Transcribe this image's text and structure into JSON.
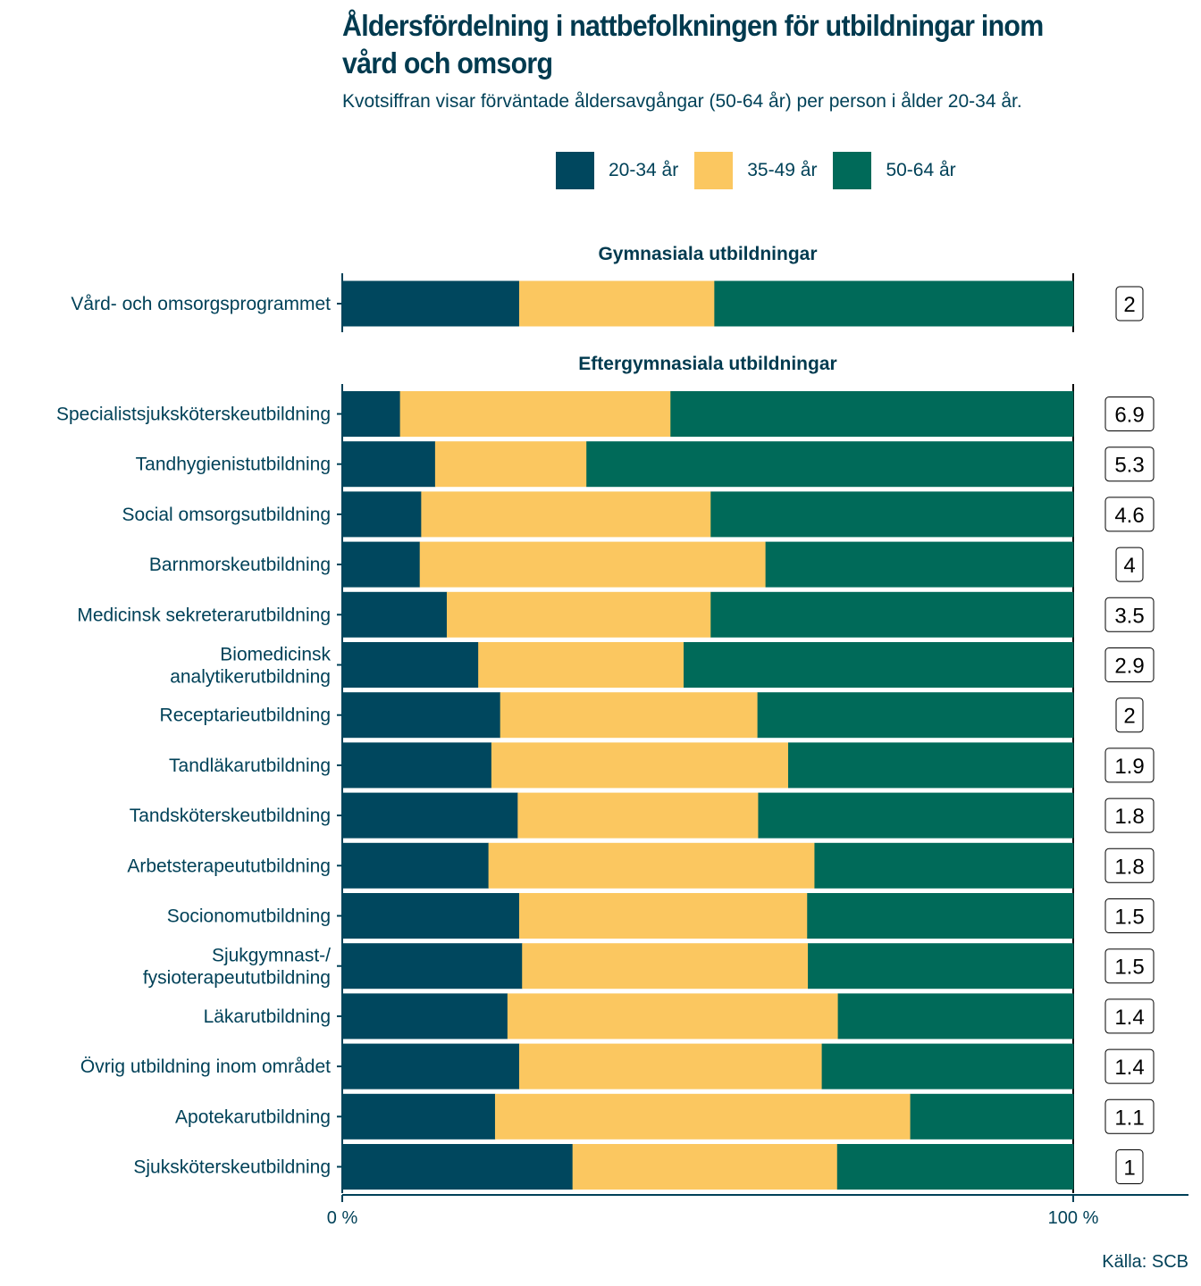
{
  "title": "Åldersfördelning i nattbefolkningen för utbildningar inom vård och omsorg",
  "subtitle": "Kvotsiffran visar förväntade åldersavgångar (50-64 år) per person i ålder 20-34 år.",
  "source": "Källa: SCB",
  "legend": [
    {
      "label": "20-34 år",
      "color": "#00475e"
    },
    {
      "label": "35-49 år",
      "color": "#fbc760"
    },
    {
      "label": "50-64 år",
      "color": "#006a59"
    }
  ],
  "chart_data": {
    "type": "bar",
    "orientation": "horizontal",
    "stacked": "percent",
    "xlim": [
      0,
      100
    ],
    "x_ticks": [
      "0 %",
      "100 %"
    ],
    "series_names": [
      "20-34 år",
      "35-49 år",
      "50-64 år"
    ],
    "colors": [
      "#00475e",
      "#fbc760",
      "#006a59"
    ],
    "legend_position": "top",
    "facets": [
      {
        "title": "Gymnasiala utbildningar",
        "rows": [
          {
            "label": "Vård- och omsorgsprogrammet",
            "values": [
              24.2,
              26.7,
              49.1
            ],
            "ratio": "2"
          }
        ]
      },
      {
        "title": "Eftergymnasiala utbildningar",
        "rows": [
          {
            "label": "Specialistsjuksköterskeutbildning",
            "values": [
              7.9,
              37.0,
              55.1
            ],
            "ratio": "6.9"
          },
          {
            "label": "Tandhygienistutbildning",
            "values": [
              12.7,
              20.7,
              66.6
            ],
            "ratio": "5.3"
          },
          {
            "label": "Social omsorgsutbildning",
            "values": [
              10.8,
              39.6,
              49.6
            ],
            "ratio": "4.6"
          },
          {
            "label": "Barnmorskeutbildning",
            "values": [
              10.6,
              47.3,
              42.1
            ],
            "ratio": "4"
          },
          {
            "label": "Medicinsk sekreterarutbildning",
            "values": [
              14.3,
              36.1,
              49.6
            ],
            "ratio": "3.5"
          },
          {
            "label": "Biomedicinsk\nanalytikerutbildning",
            "values": [
              18.6,
              28.1,
              53.3
            ],
            "ratio": "2.9"
          },
          {
            "label": "Receptarieutbildning",
            "values": [
              21.6,
              35.2,
              43.2
            ],
            "ratio": "2"
          },
          {
            "label": "Tandläkarutbildning",
            "values": [
              20.4,
              40.6,
              39.0
            ],
            "ratio": "1.9"
          },
          {
            "label": "Tandsköterskeutbildning",
            "values": [
              24.0,
              32.9,
              43.1
            ],
            "ratio": "1.8"
          },
          {
            "label": "Arbetsterapeututbildning",
            "values": [
              20.0,
              44.6,
              35.4
            ],
            "ratio": "1.8"
          },
          {
            "label": "Socionomutbildning",
            "values": [
              24.2,
              39.4,
              36.4
            ],
            "ratio": "1.5"
          },
          {
            "label": "Sjukgymnast-/\nfysioterapeututbildning",
            "values": [
              24.6,
              39.1,
              36.3
            ],
            "ratio": "1.5"
          },
          {
            "label": "Läkarutbildning",
            "values": [
              22.6,
              45.2,
              32.2
            ],
            "ratio": "1.4"
          },
          {
            "label": "Övrig utbildning inom området",
            "values": [
              24.2,
              41.4,
              34.4
            ],
            "ratio": "1.4"
          },
          {
            "label": "Apotekarutbildning",
            "values": [
              20.9,
              56.8,
              22.3
            ],
            "ratio": "1.1"
          },
          {
            "label": "Sjuksköterskeutbildning",
            "values": [
              31.5,
              36.2,
              32.3
            ],
            "ratio": "1"
          }
        ]
      }
    ]
  }
}
